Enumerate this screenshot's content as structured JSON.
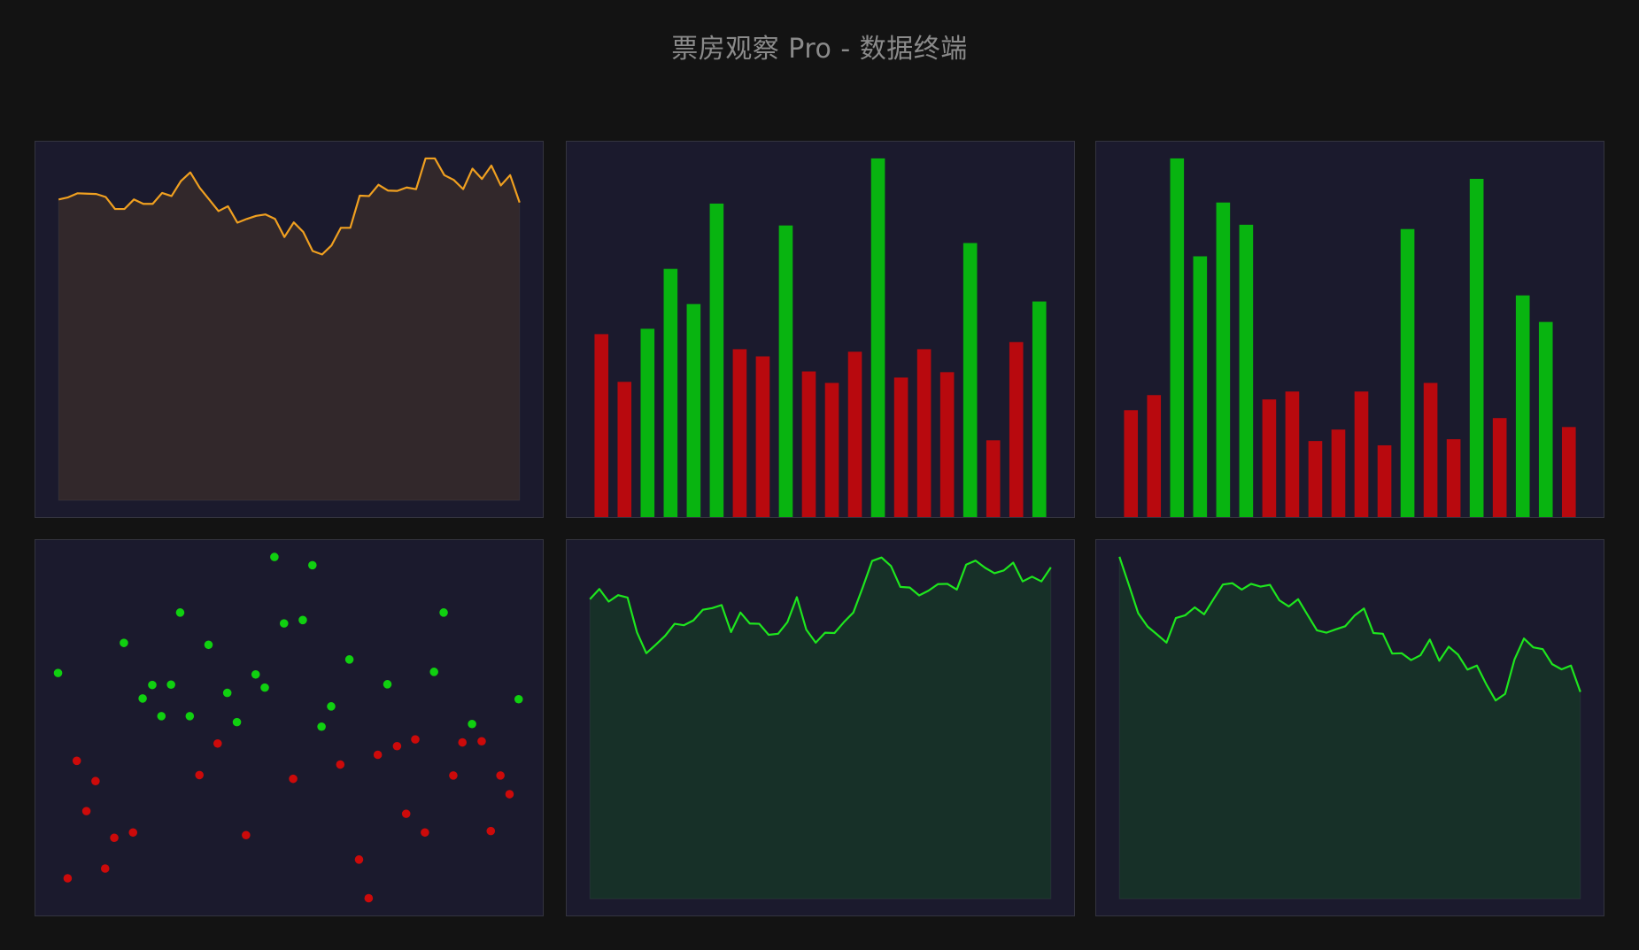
{
  "header": {
    "title": "票房观察 Pro - 数据终端"
  },
  "colors": {
    "background": "#131313",
    "panel": "#1b1a2d",
    "orange_line": "#f0a020",
    "orange_fill": "#32282b",
    "green_line": "#1ee61e",
    "green_fill": "#173028",
    "bar_up": "#08b410",
    "bar_down": "#b8090e",
    "dot_up": "#10d010",
    "dot_down": "#cc0a0a"
  },
  "chart_data": [
    {
      "type": "area",
      "color": "orange",
      "ylim": [
        0,
        100
      ],
      "values": [
        88.0,
        88.6,
        89.8,
        89.7,
        89.6,
        88.7,
        85.2,
        85.2,
        88.0,
        86.7,
        86.7,
        89.9,
        89.0,
        93.4,
        95.9,
        91.4,
        88.0,
        84.6,
        86.0,
        81.2,
        82.3,
        83.2,
        83.6,
        82.3,
        77.0,
        81.3,
        78.5,
        72.9,
        71.9,
        74.5,
        79.7,
        79.7,
        89.1,
        89.0,
        92.3,
        90.6,
        90.5,
        91.5,
        91.0,
        100,
        100,
        95.1,
        93.7,
        91.0,
        97.0,
        94.0,
        97.9,
        92.1,
        95.1,
        87.1
      ]
    },
    {
      "type": "bar",
      "ylim": [
        0,
        100
      ],
      "values": [
        51.0,
        37.7,
        52.5,
        69.2,
        59.4,
        87.4,
        46.8,
        44.8,
        81.3,
        40.6,
        37.4,
        46.1,
        100,
        38.9,
        46.8,
        40.4,
        76.4,
        21.4,
        48.8,
        60.1
      ],
      "direction": [
        "down",
        "down",
        "up",
        "up",
        "up",
        "up",
        "down",
        "down",
        "up",
        "down",
        "down",
        "down",
        "up",
        "down",
        "down",
        "down",
        "up",
        "down",
        "down",
        "up"
      ]
    },
    {
      "type": "bar",
      "ylim": [
        0,
        100
      ],
      "values": [
        29.8,
        34.0,
        100,
        72.7,
        87.7,
        81.5,
        32.8,
        35.0,
        21.2,
        24.4,
        35.0,
        20.0,
        80.3,
        37.4,
        21.7,
        94.3,
        27.6,
        61.8,
        54.4,
        25.1
      ],
      "direction": [
        "down",
        "down",
        "up",
        "up",
        "up",
        "up",
        "down",
        "down",
        "down",
        "down",
        "down",
        "down",
        "up",
        "down",
        "down",
        "up",
        "down",
        "up",
        "up",
        "down"
      ]
    },
    {
      "type": "scatter",
      "xlim": [
        0,
        100
      ],
      "ylim": [
        0,
        100
      ],
      "series": [
        {
          "color": "up",
          "points": [
            [
              47.1,
              95.5
            ],
            [
              54.6,
              93.3
            ],
            [
              28.5,
              80.7
            ],
            [
              49.0,
              77.8
            ],
            [
              52.7,
              78.7
            ],
            [
              80.5,
              80.7
            ],
            [
              17.4,
              72.6
            ],
            [
              34.1,
              72.1
            ],
            [
              61.9,
              68.2
            ],
            [
              4.4,
              64.6
            ],
            [
              43.4,
              64.2
            ],
            [
              78.6,
              64.9
            ],
            [
              23.0,
              61.4
            ],
            [
              26.7,
              61.5
            ],
            [
              45.2,
              60.7
            ],
            [
              69.4,
              61.6
            ],
            [
              21.1,
              57.8
            ],
            [
              37.8,
              59.3
            ],
            [
              95.3,
              57.6
            ],
            [
              58.3,
              55.7
            ],
            [
              24.8,
              53.1
            ],
            [
              30.4,
              53.1
            ],
            [
              39.7,
              51.5
            ],
            [
              56.4,
              50.3
            ],
            [
              86.1,
              51.0
            ]
          ]
        },
        {
          "color": "down",
          "points": [
            [
              35.9,
              45.8
            ],
            [
              74.9,
              46.9
            ],
            [
              84.2,
              46.1
            ],
            [
              88.0,
              46.4
            ],
            [
              71.3,
              45.1
            ],
            [
              67.5,
              42.8
            ],
            [
              8.1,
              41.2
            ],
            [
              60.1,
              40.2
            ],
            [
              11.8,
              35.8
            ],
            [
              32.3,
              37.4
            ],
            [
              50.8,
              36.4
            ],
            [
              82.4,
              37.3
            ],
            [
              91.7,
              37.3
            ],
            [
              93.5,
              32.3
            ],
            [
              10.0,
              27.8
            ],
            [
              73.1,
              27.1
            ],
            [
              19.2,
              22.1
            ],
            [
              15.5,
              20.7
            ],
            [
              41.5,
              21.4
            ],
            [
              76.8,
              22.1
            ],
            [
              89.8,
              22.5
            ],
            [
              63.8,
              14.9
            ],
            [
              13.7,
              12.5
            ],
            [
              6.3,
              9.9
            ],
            [
              65.7,
              4.6
            ]
          ]
        }
      ]
    },
    {
      "type": "area",
      "color": "green",
      "ylim": [
        0,
        100
      ],
      "values": [
        87.6,
        90.6,
        86.9,
        88.8,
        88.1,
        77.9,
        71.8,
        74.3,
        76.9,
        80.4,
        80.0,
        81.4,
        84.5,
        85.0,
        85.9,
        78.0,
        83.7,
        80.5,
        80.4,
        77.2,
        77.5,
        80.9,
        88.2,
        78.7,
        74.9,
        77.8,
        77.7,
        80.9,
        83.7,
        91.0,
        98.8,
        99.8,
        97.3,
        91.2,
        91.0,
        88.7,
        90.1,
        92.0,
        92.1,
        90.4,
        97.7,
        98.9,
        96.8,
        95.2,
        96.0,
        98.3,
        92.8,
        94.2,
        92.8,
        96.9
      ]
    },
    {
      "type": "area",
      "color": "green",
      "ylim": [
        0,
        100
      ],
      "values": [
        100,
        91.8,
        83.5,
        79.6,
        77.3,
        74.9,
        82.1,
        82.9,
        85.2,
        83.2,
        87.6,
        91.9,
        92.3,
        90.4,
        92.1,
        91.3,
        91.8,
        87.3,
        85.5,
        87.6,
        83.0,
        78.5,
        77.8,
        78.8,
        79.7,
        82.8,
        84.9,
        77.7,
        77.5,
        71.7,
        71.8,
        69.8,
        71.2,
        75.8,
        69.6,
        73.7,
        71.4,
        67.0,
        68.2,
        62.7,
        58.0,
        59.9,
        70.0,
        76.1,
        73.5,
        73.0,
        68.6,
        67.1,
        68.2,
        60.5
      ]
    }
  ]
}
